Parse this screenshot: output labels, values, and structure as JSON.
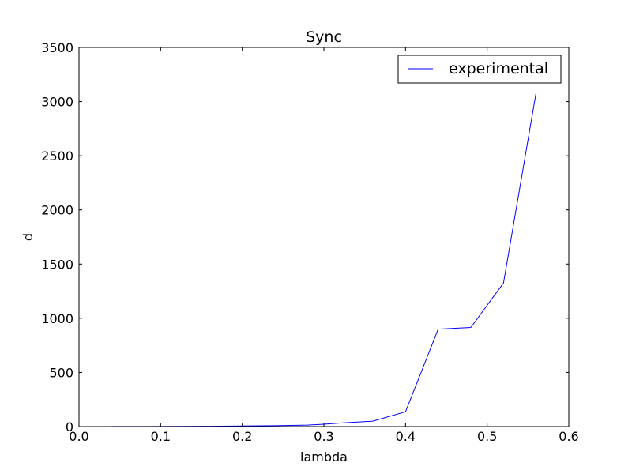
{
  "chart_data": {
    "type": "line",
    "title": "Sync",
    "xlabel": "lambda",
    "ylabel": "d",
    "xlim": [
      0.0,
      0.6
    ],
    "ylim": [
      0,
      3500
    ],
    "xticks": [
      0.0,
      0.1,
      0.2,
      0.3,
      0.4,
      0.5,
      0.6
    ],
    "xtick_labels": [
      "0.0",
      "0.1",
      "0.2",
      "0.3",
      "0.4",
      "0.5",
      "0.6"
    ],
    "yticks": [
      0,
      500,
      1000,
      1500,
      2000,
      2500,
      3000,
      3500
    ],
    "ytick_labels": [
      "0",
      "500",
      "1000",
      "1500",
      "2000",
      "2500",
      "3000",
      "3500"
    ],
    "grid": false,
    "legend": {
      "placement": "top-right",
      "entries": [
        "experimental"
      ]
    },
    "series": [
      {
        "name": "experimental",
        "color": "#0000ff",
        "x": [
          0.04,
          0.08,
          0.12,
          0.16,
          0.2,
          0.24,
          0.28,
          0.3,
          0.32,
          0.36,
          0.4,
          0.44,
          0.48,
          0.52,
          0.56
        ],
        "y": [
          1,
          1,
          2,
          3,
          5,
          8,
          14,
          22,
          33,
          50,
          137,
          900,
          915,
          1325,
          3085
        ]
      }
    ]
  }
}
